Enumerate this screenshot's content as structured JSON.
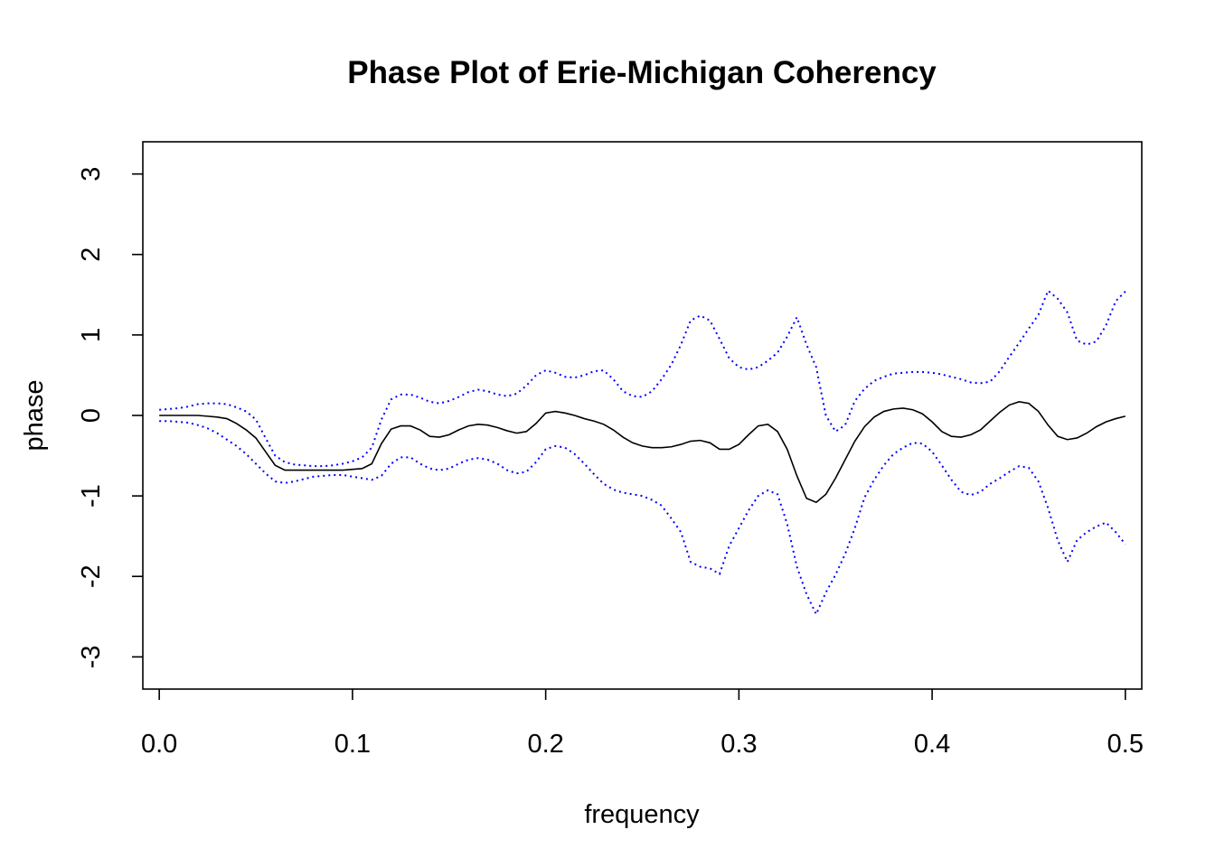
{
  "chart_data": {
    "type": "line",
    "title": "Phase Plot of Erie-Michigan Coherency",
    "xlabel": "frequency",
    "ylabel": "phase",
    "xlim": [
      -0.0085,
      0.5085
    ],
    "ylim": [
      -3.4,
      3.4
    ],
    "xticks": [
      "0.0",
      "0.1",
      "0.2",
      "0.3",
      "0.4",
      "0.5"
    ],
    "yticks": [
      "-3",
      "-2",
      "-1",
      "0",
      "1",
      "2",
      "3"
    ],
    "grid": false,
    "legend": "none",
    "x": [
      0.0,
      0.005,
      0.01,
      0.015,
      0.02,
      0.025,
      0.03,
      0.035,
      0.04,
      0.045,
      0.05,
      0.055,
      0.06,
      0.065,
      0.07,
      0.075,
      0.08,
      0.085,
      0.09,
      0.095,
      0.1,
      0.105,
      0.11,
      0.115,
      0.12,
      0.125,
      0.13,
      0.135,
      0.14,
      0.145,
      0.15,
      0.155,
      0.16,
      0.165,
      0.17,
      0.175,
      0.18,
      0.185,
      0.19,
      0.195,
      0.2,
      0.205,
      0.21,
      0.215,
      0.22,
      0.225,
      0.23,
      0.235,
      0.24,
      0.245,
      0.25,
      0.255,
      0.26,
      0.265,
      0.27,
      0.275,
      0.28,
      0.285,
      0.29,
      0.295,
      0.3,
      0.305,
      0.31,
      0.315,
      0.32,
      0.325,
      0.33,
      0.335,
      0.34,
      0.345,
      0.35,
      0.355,
      0.36,
      0.365,
      0.37,
      0.375,
      0.38,
      0.385,
      0.39,
      0.395,
      0.4,
      0.405,
      0.41,
      0.415,
      0.42,
      0.425,
      0.43,
      0.435,
      0.44,
      0.445,
      0.45,
      0.455,
      0.46,
      0.465,
      0.47,
      0.475,
      0.48,
      0.485,
      0.49,
      0.495,
      0.5
    ],
    "series": [
      {
        "color": "#000000",
        "style": "solid",
        "values": [
          0.0,
          0.0,
          0.0,
          0.0,
          0.0,
          -0.01,
          -0.02,
          -0.04,
          -0.1,
          -0.18,
          -0.28,
          -0.45,
          -0.62,
          -0.68,
          -0.68,
          -0.68,
          -0.68,
          -0.68,
          -0.68,
          -0.68,
          -0.67,
          -0.66,
          -0.6,
          -0.35,
          -0.17,
          -0.13,
          -0.13,
          -0.18,
          -0.26,
          -0.27,
          -0.24,
          -0.18,
          -0.13,
          -0.11,
          -0.12,
          -0.15,
          -0.19,
          -0.22,
          -0.2,
          -0.1,
          0.03,
          0.05,
          0.03,
          0.0,
          -0.04,
          -0.07,
          -0.11,
          -0.18,
          -0.27,
          -0.34,
          -0.38,
          -0.4,
          -0.4,
          -0.39,
          -0.36,
          -0.32,
          -0.31,
          -0.34,
          -0.42,
          -0.42,
          -0.36,
          -0.24,
          -0.13,
          -0.11,
          -0.2,
          -0.42,
          -0.75,
          -1.03,
          -1.08,
          -0.98,
          -0.78,
          -0.55,
          -0.32,
          -0.14,
          -0.02,
          0.05,
          0.08,
          0.09,
          0.07,
          0.02,
          -0.08,
          -0.2,
          -0.26,
          -0.27,
          -0.24,
          -0.18,
          -0.07,
          0.04,
          0.13,
          0.17,
          0.15,
          0.05,
          -0.12,
          -0.26,
          -0.3,
          -0.28,
          -0.22,
          -0.14,
          -0.08,
          -0.04,
          -0.01
        ]
      },
      {
        "color": "#0000ff",
        "style": "dotted",
        "values": [
          0.07,
          0.08,
          0.09,
          0.11,
          0.14,
          0.15,
          0.15,
          0.14,
          0.1,
          0.05,
          -0.05,
          -0.28,
          -0.5,
          -0.58,
          -0.61,
          -0.62,
          -0.63,
          -0.63,
          -0.62,
          -0.6,
          -0.57,
          -0.52,
          -0.4,
          -0.05,
          0.2,
          0.26,
          0.26,
          0.22,
          0.17,
          0.15,
          0.18,
          0.23,
          0.29,
          0.32,
          0.3,
          0.26,
          0.24,
          0.27,
          0.37,
          0.5,
          0.56,
          0.53,
          0.48,
          0.47,
          0.5,
          0.55,
          0.56,
          0.45,
          0.3,
          0.24,
          0.23,
          0.3,
          0.45,
          0.63,
          0.88,
          1.18,
          1.24,
          1.18,
          0.95,
          0.71,
          0.6,
          0.57,
          0.6,
          0.68,
          0.78,
          0.98,
          1.22,
          0.88,
          0.6,
          0.0,
          -0.2,
          -0.12,
          0.18,
          0.33,
          0.43,
          0.48,
          0.52,
          0.53,
          0.54,
          0.54,
          0.53,
          0.51,
          0.48,
          0.45,
          0.41,
          0.4,
          0.42,
          0.55,
          0.73,
          0.9,
          1.08,
          1.25,
          1.55,
          1.45,
          1.28,
          0.93,
          0.88,
          0.92,
          1.12,
          1.42,
          1.54
        ]
      },
      {
        "color": "#0000ff",
        "style": "dotted",
        "values": [
          -0.07,
          -0.07,
          -0.08,
          -0.09,
          -0.12,
          -0.16,
          -0.22,
          -0.3,
          -0.38,
          -0.48,
          -0.6,
          -0.72,
          -0.82,
          -0.84,
          -0.82,
          -0.79,
          -0.76,
          -0.75,
          -0.74,
          -0.74,
          -0.76,
          -0.78,
          -0.8,
          -0.75,
          -0.6,
          -0.52,
          -0.52,
          -0.6,
          -0.66,
          -0.68,
          -0.66,
          -0.6,
          -0.55,
          -0.53,
          -0.55,
          -0.6,
          -0.68,
          -0.72,
          -0.7,
          -0.58,
          -0.42,
          -0.38,
          -0.4,
          -0.48,
          -0.6,
          -0.73,
          -0.85,
          -0.92,
          -0.96,
          -0.98,
          -1.0,
          -1.05,
          -1.12,
          -1.28,
          -1.45,
          -1.82,
          -1.88,
          -1.9,
          -1.97,
          -1.62,
          -1.4,
          -1.18,
          -1.0,
          -0.93,
          -0.98,
          -1.35,
          -1.88,
          -2.22,
          -2.47,
          -2.2,
          -1.98,
          -1.72,
          -1.4,
          -1.02,
          -0.8,
          -0.62,
          -0.48,
          -0.4,
          -0.34,
          -0.35,
          -0.45,
          -0.62,
          -0.8,
          -0.95,
          -0.99,
          -0.95,
          -0.85,
          -0.78,
          -0.7,
          -0.63,
          -0.65,
          -0.82,
          -1.15,
          -1.55,
          -1.82,
          -1.55,
          -1.45,
          -1.38,
          -1.33,
          -1.45,
          -1.6
        ]
      }
    ]
  }
}
